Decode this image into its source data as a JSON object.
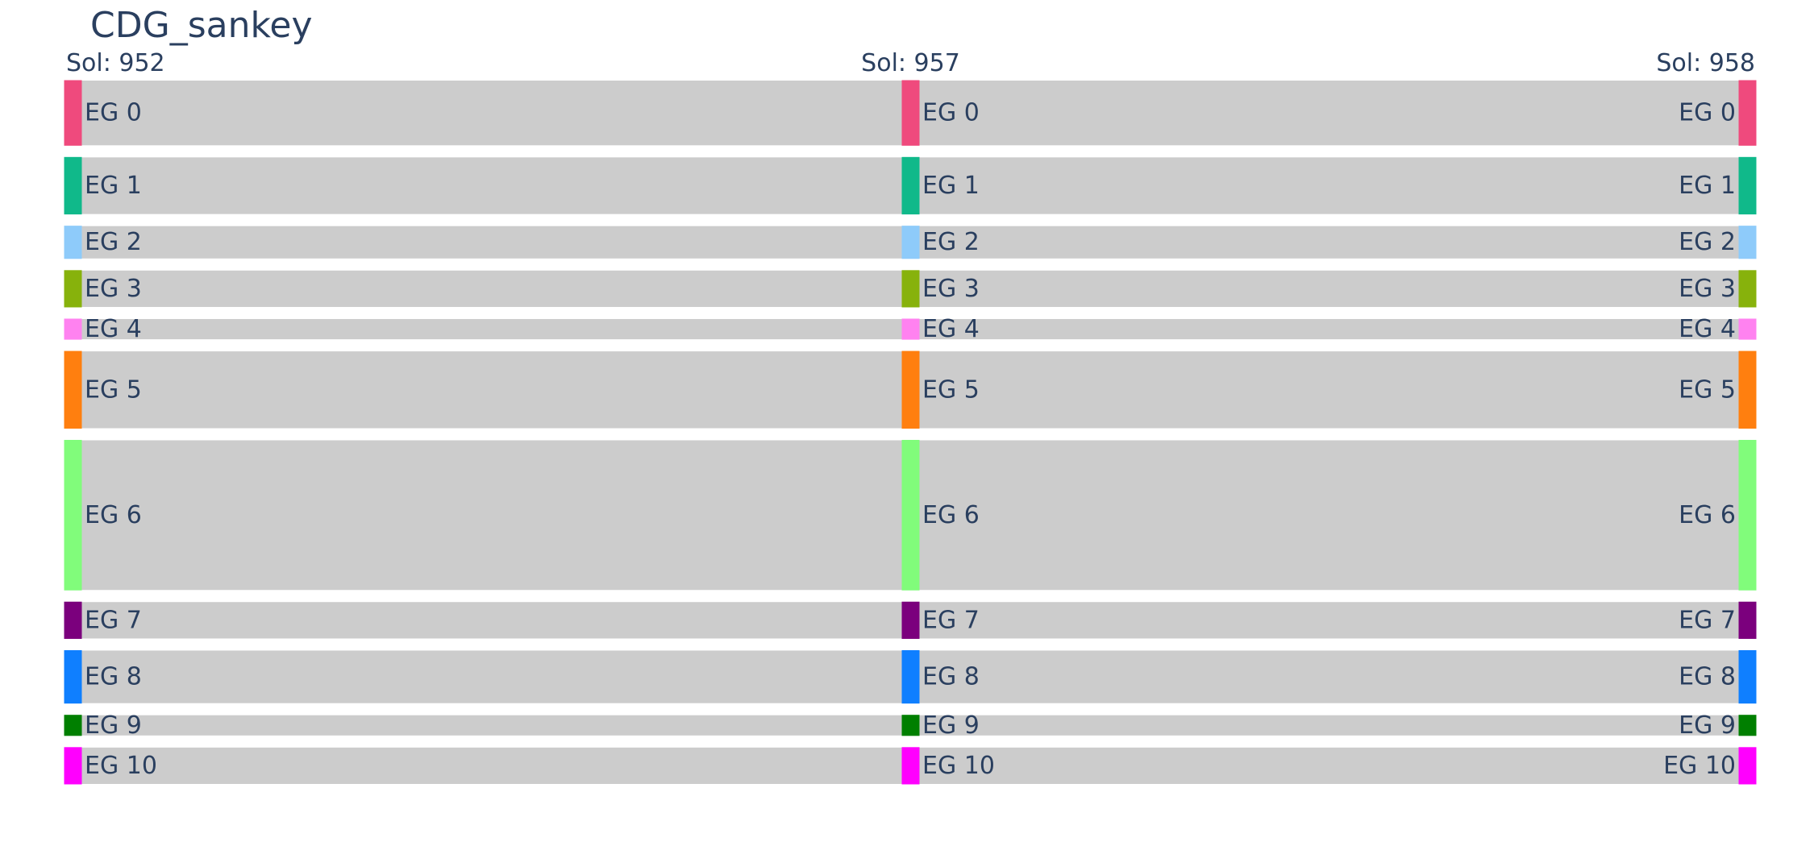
{
  "chart_data": {
    "type": "sankey",
    "title": "CDG_sankey",
    "columns": [
      "Sol: 952",
      "Sol: 957",
      "Sol: 958"
    ],
    "nodes": [
      {
        "label": "EG 0",
        "value": 16,
        "color": "#ef4a7d"
      },
      {
        "label": "EG 1",
        "value": 14,
        "color": "#10b98a"
      },
      {
        "label": "EG 2",
        "value": 8,
        "color": "#8ecbfa"
      },
      {
        "label": "EG 3",
        "value": 9,
        "color": "#87b20c"
      },
      {
        "label": "EG 4",
        "value": 5,
        "color": "#ff82f0"
      },
      {
        "label": "EG 5",
        "value": 19,
        "color": "#ff7f0f"
      },
      {
        "label": "EG 6",
        "value": 37,
        "color": "#81fc7b"
      },
      {
        "label": "EG 7",
        "value": 9,
        "color": "#7b007d"
      },
      {
        "label": "EG 8",
        "value": 13,
        "color": "#0f7fff"
      },
      {
        "label": "EG 9",
        "value": 5,
        "color": "#007f00"
      },
      {
        "label": "EG 10",
        "value": 9,
        "color": "#ff00fe"
      }
    ],
    "links": [
      {
        "from_column": 0,
        "to_column": 1,
        "group": "EG 0",
        "value": 16
      },
      {
        "from_column": 0,
        "to_column": 1,
        "group": "EG 1",
        "value": 14
      },
      {
        "from_column": 0,
        "to_column": 1,
        "group": "EG 2",
        "value": 8
      },
      {
        "from_column": 0,
        "to_column": 1,
        "group": "EG 3",
        "value": 9
      },
      {
        "from_column": 0,
        "to_column": 1,
        "group": "EG 4",
        "value": 5
      },
      {
        "from_column": 0,
        "to_column": 1,
        "group": "EG 5",
        "value": 19
      },
      {
        "from_column": 0,
        "to_column": 1,
        "group": "EG 6",
        "value": 37
      },
      {
        "from_column": 0,
        "to_column": 1,
        "group": "EG 7",
        "value": 9
      },
      {
        "from_column": 0,
        "to_column": 1,
        "group": "EG 8",
        "value": 13
      },
      {
        "from_column": 0,
        "to_column": 1,
        "group": "EG 9",
        "value": 5
      },
      {
        "from_column": 0,
        "to_column": 1,
        "group": "EG 10",
        "value": 9
      },
      {
        "from_column": 1,
        "to_column": 2,
        "group": "EG 0",
        "value": 16
      },
      {
        "from_column": 1,
        "to_column": 2,
        "group": "EG 1",
        "value": 14
      },
      {
        "from_column": 1,
        "to_column": 2,
        "group": "EG 2",
        "value": 8
      },
      {
        "from_column": 1,
        "to_column": 2,
        "group": "EG 3",
        "value": 9
      },
      {
        "from_column": 1,
        "to_column": 2,
        "group": "EG 4",
        "value": 5
      },
      {
        "from_column": 1,
        "to_column": 2,
        "group": "EG 5",
        "value": 19
      },
      {
        "from_column": 1,
        "to_column": 2,
        "group": "EG 6",
        "value": 37
      },
      {
        "from_column": 1,
        "to_column": 2,
        "group": "EG 7",
        "value": 9
      },
      {
        "from_column": 1,
        "to_column": 2,
        "group": "EG 8",
        "value": 13
      },
      {
        "from_column": 1,
        "to_column": 2,
        "group": "EG 9",
        "value": 5
      },
      {
        "from_column": 1,
        "to_column": 2,
        "group": "EG 10",
        "value": 9
      }
    ],
    "link_color": "#cccccc",
    "label_color": "#2a3f5f"
  }
}
